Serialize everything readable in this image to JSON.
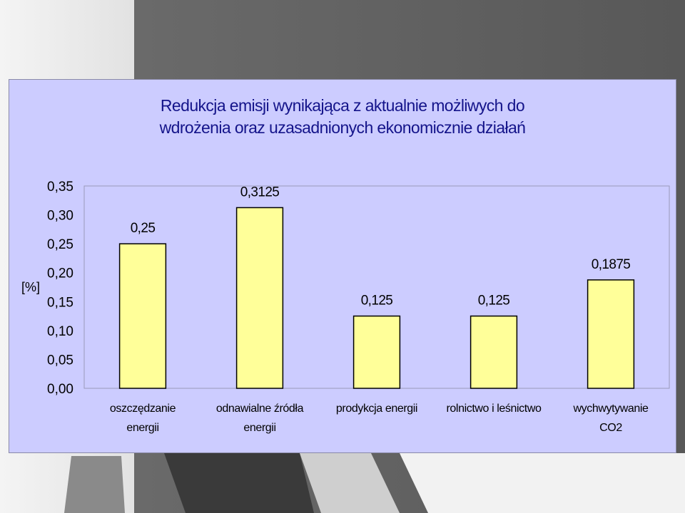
{
  "chart_data": {
    "type": "bar",
    "title_lines": [
      "Redukcja emisji wynikająca z aktualnie możliwych do",
      "wdrożenia  oraz uzasadnionych ekonomicznie działań"
    ],
    "ylabel": "[%]",
    "xlabel": "",
    "ylim": [
      0,
      0.35
    ],
    "yticks": [
      "0,35",
      "0,30",
      "0,25",
      "0,20",
      "0,15",
      "0,10",
      "0,05",
      "0,00"
    ],
    "categories": [
      [
        "oszczędzanie",
        "energii"
      ],
      [
        "odnawialne źródła",
        "energii"
      ],
      [
        "prodykcja energii"
      ],
      [
        "rolnictwo i leśnictwo"
      ],
      [
        "wychwytywanie",
        "CO2"
      ]
    ],
    "values": [
      0.25,
      0.3125,
      0.125,
      0.125,
      0.1875
    ],
    "value_labels": [
      "0,25",
      "0,3125",
      "0,125",
      "0,125",
      "0,1875"
    ],
    "grid": false,
    "legend": "none",
    "colors": {
      "bar_fill": "#ffff99",
      "bar_stroke": "#000000",
      "plot_background": "#ccccff",
      "title": "#14148a"
    }
  }
}
